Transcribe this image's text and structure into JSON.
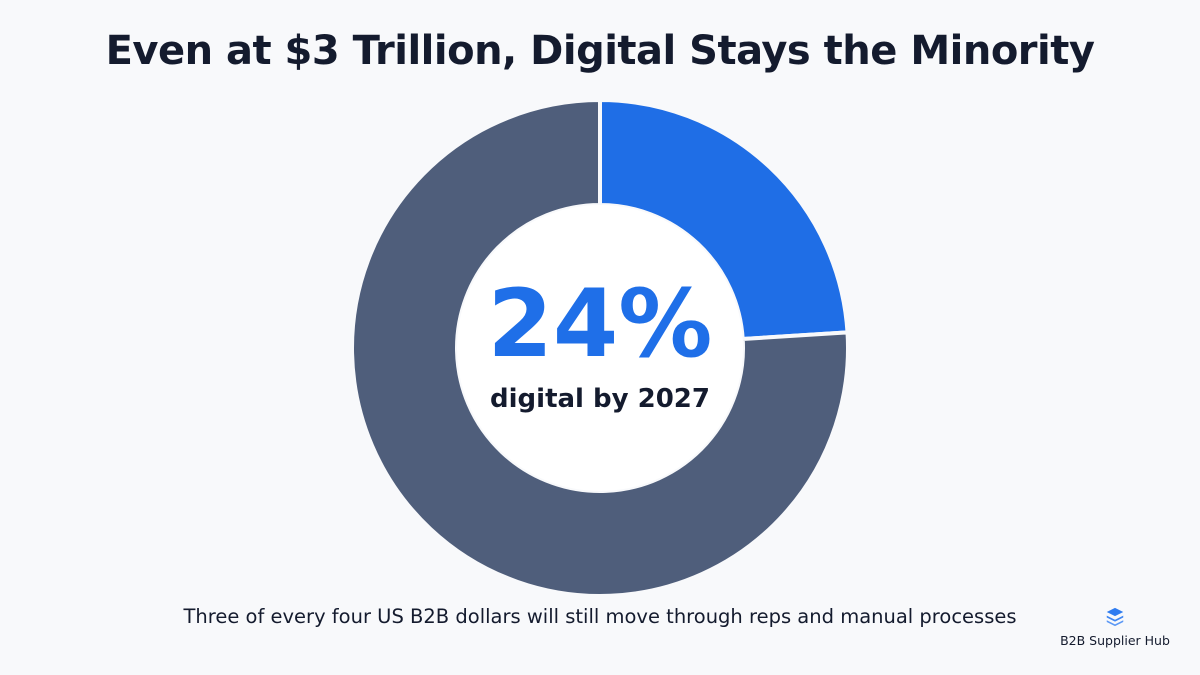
{
  "title": "Even at $3 Trillion, Digital Stays the Minority",
  "center": {
    "value": "24%",
    "label": "digital by 2027"
  },
  "caption": "Three of every four US B2B dollars will still move through reps and manual processes",
  "brand": {
    "name": "B2B Supplier Hub",
    "icon": "stacked-layers-icon"
  },
  "colors": {
    "digital": "#1f6ee6",
    "other": "#4f5e7b",
    "background": "#f8f9fb",
    "text": "#141b2e"
  },
  "chart_data": {
    "type": "pie",
    "style": "donut",
    "title": "Even at $3 Trillion, Digital Stays the Minority",
    "slices": [
      {
        "value": 24,
        "color": "#1f6ee6"
      },
      {
        "value": 76,
        "color": "#4f5e7b"
      }
    ],
    "center_label": "24%",
    "center_sublabel": "digital by 2027",
    "legend": "none"
  }
}
